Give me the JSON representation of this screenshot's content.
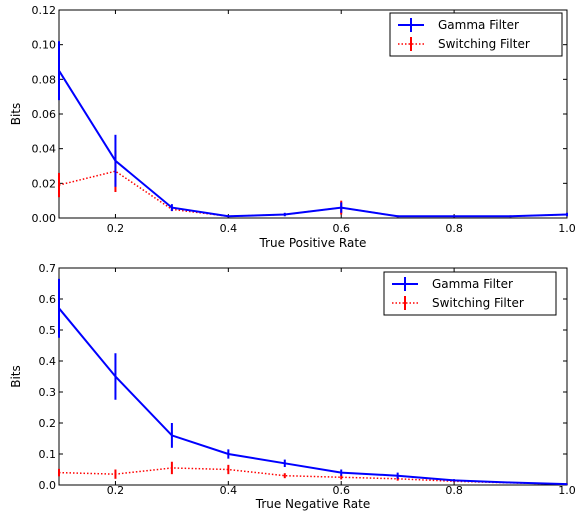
{
  "chart_data": [
    {
      "type": "line",
      "xlabel": "True Positive Rate",
      "ylabel": "Bits",
      "xlim": [
        0.1,
        1.0
      ],
      "ylim": [
        0.0,
        0.12
      ],
      "xticks": [
        0.2,
        0.4,
        0.6,
        0.8,
        1.0
      ],
      "xtick_labels": [
        "0.2",
        "0.4",
        "0.6",
        "0.8",
        "1.0"
      ],
      "yticks": [
        0.0,
        0.02,
        0.04,
        0.06,
        0.08,
        0.1,
        0.12
      ],
      "ytick_labels": [
        "0.00",
        "0.02",
        "0.04",
        "0.06",
        "0.08",
        "0.10",
        "0.12"
      ],
      "grid": false,
      "legend_position": "top-right",
      "x": [
        0.1,
        0.2,
        0.3,
        0.4,
        0.5,
        0.6,
        0.7,
        0.8,
        0.9,
        1.0
      ],
      "series": [
        {
          "name": "Gamma Filter",
          "color": "#0000ff",
          "style": "solid",
          "values": [
            0.085,
            0.033,
            0.006,
            0.001,
            0.002,
            0.006,
            0.001,
            0.001,
            0.001,
            0.002
          ],
          "errors": [
            0.017,
            0.015,
            0.002,
            0.0005,
            0.001,
            0.003,
            0.0005,
            0.0005,
            0.0005,
            0.001
          ]
        },
        {
          "name": "Switching Filter",
          "color": "#ff0000",
          "style": "dotted",
          "values": [
            0.019,
            0.027,
            0.005,
            0.001,
            0.002,
            0.006,
            0.001,
            0.001,
            0.001,
            0.002
          ],
          "errors": [
            0.007,
            0.012,
            0.001,
            0.0005,
            0.0005,
            0.004,
            0.0005,
            0.0005,
            0.0005,
            0.0005
          ]
        }
      ]
    },
    {
      "type": "line",
      "xlabel": "True Negative Rate",
      "ylabel": "Bits",
      "xlim": [
        0.1,
        1.0
      ],
      "ylim": [
        0.0,
        0.7
      ],
      "xticks": [
        0.2,
        0.4,
        0.6,
        0.8,
        1.0
      ],
      "xtick_labels": [
        "0.2",
        "0.4",
        "0.6",
        "0.8",
        "1.0"
      ],
      "yticks": [
        0.0,
        0.1,
        0.2,
        0.3,
        0.4,
        0.5,
        0.6,
        0.7
      ],
      "ytick_labels": [
        "0.0",
        "0.1",
        "0.2",
        "0.3",
        "0.4",
        "0.5",
        "0.6",
        "0.7"
      ],
      "grid": false,
      "legend_position": "top-right",
      "x": [
        0.1,
        0.2,
        0.3,
        0.4,
        0.5,
        0.6,
        0.7,
        0.8,
        0.9,
        1.0
      ],
      "series": [
        {
          "name": "Gamma Filter",
          "color": "#0000ff",
          "style": "solid",
          "values": [
            0.57,
            0.35,
            0.16,
            0.1,
            0.07,
            0.04,
            0.03,
            0.015,
            0.008,
            0.003
          ],
          "errors": [
            0.095,
            0.075,
            0.04,
            0.015,
            0.012,
            0.01,
            0.01,
            0.004,
            0.002,
            0.001
          ]
        },
        {
          "name": "Switching Filter",
          "color": "#ff0000",
          "style": "dotted",
          "values": [
            0.04,
            0.035,
            0.055,
            0.05,
            0.03,
            0.025,
            0.02,
            0.012,
            0.007,
            0.003
          ],
          "errors": [
            0.012,
            0.015,
            0.02,
            0.015,
            0.008,
            0.007,
            0.006,
            0.003,
            0.002,
            0.001
          ]
        }
      ]
    }
  ]
}
